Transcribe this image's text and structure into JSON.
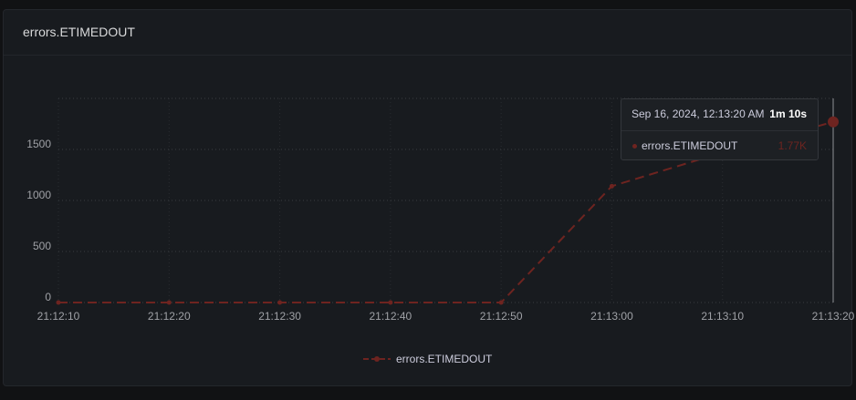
{
  "panel": {
    "title": "errors.ETIMEDOUT"
  },
  "tooltip": {
    "date": "Sep 16, 2024, 12:13:20 AM",
    "duration": "1m 10s",
    "series_name": "errors.ETIMEDOUT",
    "value": "1.77K"
  },
  "colors": {
    "series": "#6e2420",
    "grid": "#3a3d42",
    "axis_text": "#9fa1a6"
  },
  "chart_data": {
    "type": "line",
    "x": [
      "21:12:10",
      "21:12:20",
      "21:12:30",
      "21:12:40",
      "21:12:50",
      "21:13:00",
      "21:13:10",
      "21:13:20"
    ],
    "series": [
      {
        "name": "errors.ETIMEDOUT",
        "values": [
          0,
          0,
          0,
          0,
          0,
          1140,
          1470,
          1770
        ]
      }
    ],
    "x_tick_labels": [
      "21:12:10",
      "21:12:20",
      "21:12:30",
      "21:12:40",
      "21:12:50",
      "21:13:00",
      "21:13:10",
      "21:13:20"
    ],
    "y_tick_labels": [
      "0",
      "500",
      "1000",
      "1500"
    ],
    "y_ticks": [
      0,
      500,
      1000,
      1500
    ],
    "ylim": [
      0,
      2000
    ],
    "grid": true,
    "legend": "bottom-center",
    "line_style": "dashed"
  }
}
